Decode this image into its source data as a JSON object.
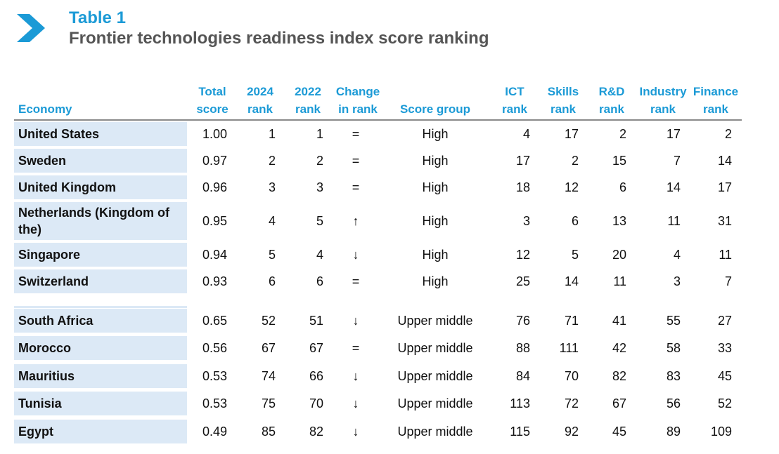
{
  "heading": {
    "label": "Table 1",
    "title": "Frontier technologies readiness index score ranking"
  },
  "colors": {
    "accent": "#1b9ad6",
    "title_gray": "#555555",
    "cell_fill": "#dce9f6"
  },
  "columns": {
    "economy": "Economy",
    "total_score": [
      "Total",
      "score"
    ],
    "rank_2024": [
      "2024",
      "rank"
    ],
    "rank_2022": [
      "2022",
      "rank"
    ],
    "change": [
      "Change",
      "in rank"
    ],
    "score_group": "Score group",
    "ict": [
      "ICT",
      "rank"
    ],
    "skills": [
      "Skills",
      "rank"
    ],
    "rd": [
      "R&D",
      "rank"
    ],
    "industry": [
      "Industry",
      "rank"
    ],
    "finance": [
      "Finance",
      "rank"
    ]
  },
  "rows": [
    {
      "economy": "United States",
      "score": "1.00",
      "r2024": "1",
      "r2022": "1",
      "change": "=",
      "group": "High",
      "ict": "4",
      "skills": "17",
      "rd": "2",
      "industry": "17",
      "finance": "2"
    },
    {
      "economy": "Sweden",
      "score": "0.97",
      "r2024": "2",
      "r2022": "2",
      "change": "=",
      "group": "High",
      "ict": "17",
      "skills": "2",
      "rd": "15",
      "industry": "7",
      "finance": "14"
    },
    {
      "economy": "United Kingdom",
      "score": "0.96",
      "r2024": "3",
      "r2022": "3",
      "change": "=",
      "group": "High",
      "ict": "18",
      "skills": "12",
      "rd": "6",
      "industry": "14",
      "finance": "17"
    },
    {
      "economy": "Netherlands (Kingdom of the)",
      "score": "0.95",
      "r2024": "4",
      "r2022": "5",
      "change": "↑",
      "group": "High",
      "ict": "3",
      "skills": "6",
      "rd": "13",
      "industry": "11",
      "finance": "31"
    },
    {
      "economy": "Singapore",
      "score": "0.94",
      "r2024": "5",
      "r2022": "4",
      "change": "↓",
      "group": "High",
      "ict": "12",
      "skills": "5",
      "rd": "20",
      "industry": "4",
      "finance": "11"
    },
    {
      "economy": "Switzerland",
      "score": "0.93",
      "r2024": "6",
      "r2022": "6",
      "change": "=",
      "group": "High",
      "ict": "25",
      "skills": "14",
      "rd": "11",
      "industry": "3",
      "finance": "7"
    },
    {
      "economy": "South Africa",
      "score": "0.65",
      "r2024": "52",
      "r2022": "51",
      "change": "↓",
      "group": "Upper middle",
      "ict": "76",
      "skills": "71",
      "rd": "41",
      "industry": "55",
      "finance": "27"
    },
    {
      "economy": "Morocco",
      "score": "0.56",
      "r2024": "67",
      "r2022": "67",
      "change": "=",
      "group": "Upper middle",
      "ict": "88",
      "skills": "111",
      "rd": "42",
      "industry": "58",
      "finance": "33"
    },
    {
      "economy": "Mauritius",
      "score": "0.53",
      "r2024": "74",
      "r2022": "66",
      "change": "↓",
      "group": "Upper middle",
      "ict": "84",
      "skills": "70",
      "rd": "82",
      "industry": "83",
      "finance": "45"
    },
    {
      "economy": "Tunisia",
      "score": "0.53",
      "r2024": "75",
      "r2022": "70",
      "change": "↓",
      "group": "Upper middle",
      "ict": "113",
      "skills": "72",
      "rd": "67",
      "industry": "56",
      "finance": "52"
    },
    {
      "economy": "Egypt",
      "score": "0.49",
      "r2024": "85",
      "r2022": "82",
      "change": "↓",
      "group": "Upper middle",
      "ict": "115",
      "skills": "92",
      "rd": "45",
      "industry": "89",
      "finance": "109"
    }
  ]
}
